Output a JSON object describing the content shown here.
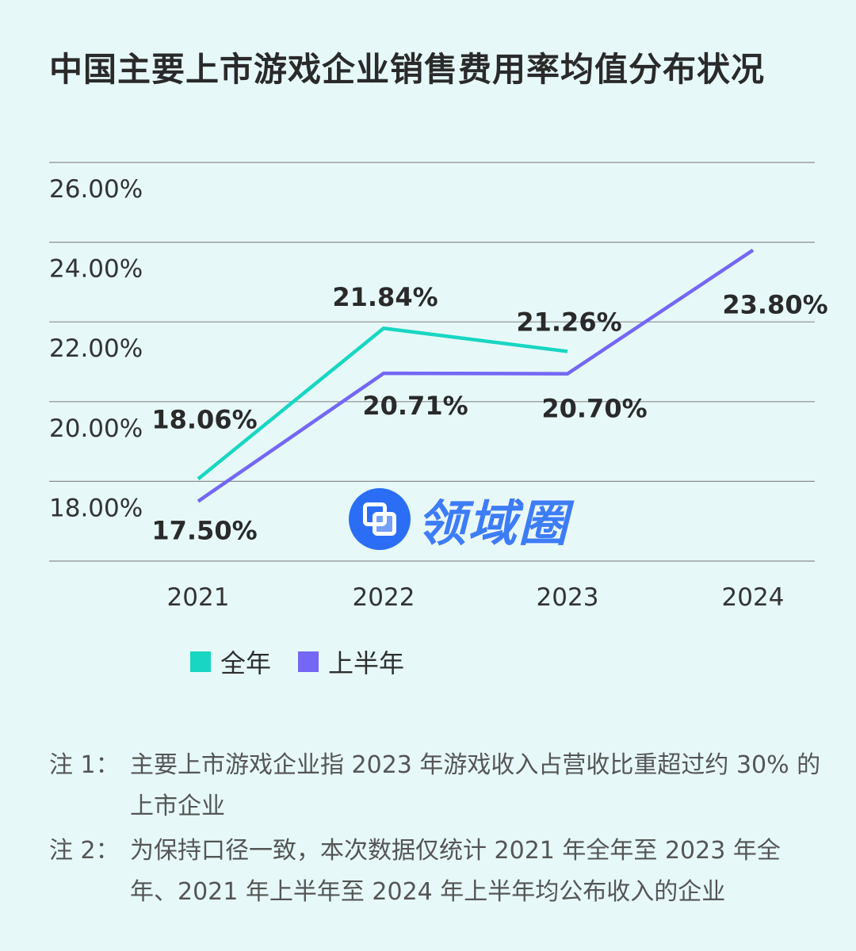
{
  "title": "中国主要上市游戏企业销售费用率均值分布状况",
  "chart_data": {
    "type": "line",
    "title": "中国主要上市游戏企业销售费用率均值分布状况",
    "categories": [
      "2021",
      "2022",
      "2023",
      "2024"
    ],
    "y_ticks": [
      "26.00%",
      "24.00%",
      "22.00%",
      "20.00%",
      "18.00%"
    ],
    "ylim": [
      16,
      26
    ],
    "gridlines": true,
    "legend_position": "bottom",
    "series": [
      {
        "name": "全年",
        "color": "#18d6c2",
        "values": [
          18.06,
          21.84,
          21.26,
          null
        ],
        "labels": [
          "18.06%",
          "21.84%",
          "21.26%",
          null
        ]
      },
      {
        "name": "上半年",
        "color": "#7467f5",
        "values": [
          17.5,
          20.71,
          20.7,
          23.8
        ],
        "labels": [
          "17.50%",
          "20.71%",
          "20.70%",
          "23.80%"
        ]
      }
    ]
  },
  "legend": {
    "items": [
      {
        "label": "全年",
        "color": "#18d6c2"
      },
      {
        "label": "上半年",
        "color": "#7467f5"
      }
    ]
  },
  "watermark": {
    "text": "领域圈",
    "color": "#3d7df7"
  },
  "notes": [
    {
      "label": "注 1：",
      "text": "主要上市游戏企业指 2023 年游戏收入占营收比重超过约 30% 的上市企业"
    },
    {
      "label": "注 2：",
      "text": "为保持口径一致，本次数据仅统计 2021 年全年至 2023 年全年、2021 年上半年至 2024 年上半年均公布收入的企业"
    }
  ]
}
